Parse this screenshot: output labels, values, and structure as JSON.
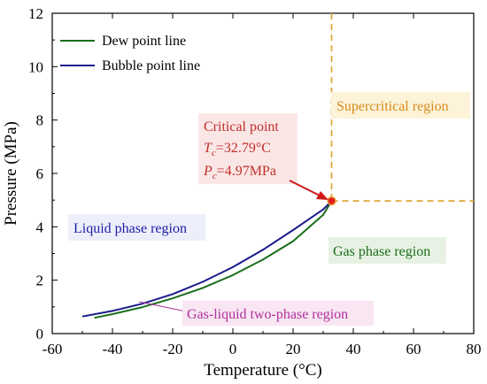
{
  "chart_data": {
    "type": "line",
    "xlabel": "Temperature (°C)",
    "ylabel": "Pressure (MPa)",
    "xlim": [
      -60,
      80
    ],
    "ylim": [
      0,
      12
    ],
    "xticks": [
      -60,
      -40,
      -20,
      0,
      20,
      40,
      60,
      80
    ],
    "yticks": [
      0,
      2,
      4,
      6,
      8,
      10,
      12
    ],
    "grid": false,
    "legend_position": "top-left",
    "series": [
      {
        "name": "Dew point line",
        "color": "#1a6e1a",
        "x": [
          -46,
          -40,
          -30,
          -20,
          -10,
          0,
          10,
          20,
          30,
          32.79
        ],
        "y": [
          0.59,
          0.73,
          0.99,
          1.32,
          1.71,
          2.19,
          2.77,
          3.46,
          4.45,
          4.97
        ]
      },
      {
        "name": "Bubble point line",
        "color": "#1a1a8c",
        "x": [
          -50,
          -40,
          -30,
          -20,
          -10,
          0,
          10,
          20,
          30,
          32.79
        ],
        "y": [
          0.64,
          0.85,
          1.12,
          1.48,
          1.94,
          2.49,
          3.14,
          3.88,
          4.65,
          4.97
        ]
      }
    ],
    "critical_point": {
      "x": 32.79,
      "y": 4.97,
      "color": "#e02020",
      "label": "Critical point",
      "tc_text": "=32.79°C",
      "pc_text": "=4.97MPa"
    },
    "dashed_lines_color": "#dba12a",
    "annotations": {
      "supercritical": "Supercritical region",
      "liquid": "Liquid phase region",
      "gas": "Gas phase region",
      "two_phase": "Gas-liquid two-phase region"
    },
    "annotation_colors": {
      "supercritical": "#d68a1c",
      "liquid": "#1d1da5",
      "gas": "#1a6e1a",
      "two_phase": "#b0309e",
      "critical": "#c0302a"
    }
  }
}
